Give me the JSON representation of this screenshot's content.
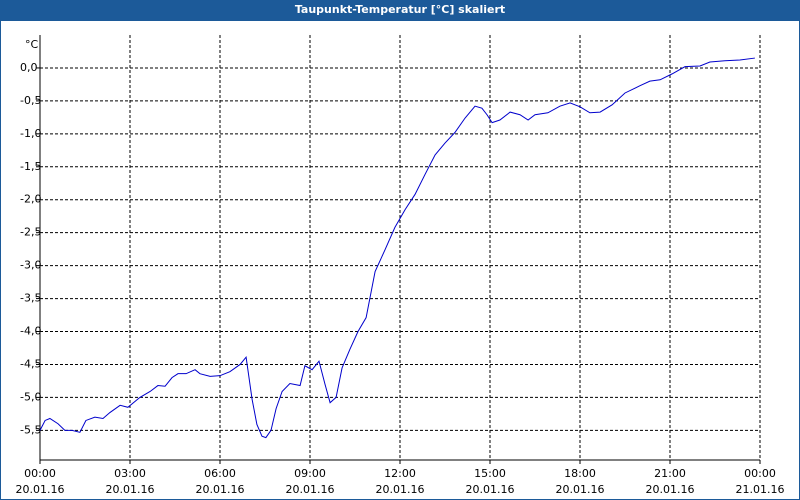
{
  "chart_data": {
    "type": "line",
    "title": "Taupunkt-Temperatur [°C] skaliert",
    "y_label": "°C",
    "x": [
      0,
      0.17,
      0.33,
      0.6,
      0.83,
      1.07,
      1.33,
      1.53,
      1.83,
      2.1,
      2.33,
      2.67,
      2.93,
      3.33,
      3.67,
      3.93,
      4.17,
      4.4,
      4.6,
      4.87,
      5.17,
      5.33,
      5.67,
      6.0,
      6.33,
      6.67,
      6.87,
      7.07,
      7.23,
      7.4,
      7.53,
      7.7,
      7.87,
      8.07,
      8.33,
      8.67,
      8.83,
      9.07,
      9.3,
      9.5,
      9.67,
      9.87,
      10.07,
      10.33,
      10.6,
      10.87,
      11.17,
      11.5,
      11.83,
      12.17,
      12.5,
      12.83,
      13.17,
      13.5,
      13.83,
      14.17,
      14.5,
      14.73,
      14.9,
      15.07,
      15.33,
      15.67,
      16.0,
      16.27,
      16.5,
      16.93,
      17.33,
      17.67,
      18.0,
      18.33,
      18.67,
      19.07,
      19.5,
      20.0,
      20.33,
      20.67,
      21.07,
      21.5,
      22.0,
      22.33,
      22.83,
      23.33,
      23.83
    ],
    "series": [
      {
        "name": "Taupunkt-Temperatur",
        "color": "#0000cc",
        "values": [
          -5.5,
          -5.35,
          -5.32,
          -5.4,
          -5.5,
          -5.5,
          -5.53,
          -5.35,
          -5.3,
          -5.32,
          -5.23,
          -5.12,
          -5.15,
          -5.0,
          -4.91,
          -4.82,
          -4.83,
          -4.7,
          -4.64,
          -4.64,
          -4.58,
          -4.64,
          -4.68,
          -4.67,
          -4.61,
          -4.5,
          -4.39,
          -5.03,
          -5.41,
          -5.59,
          -5.61,
          -5.5,
          -5.17,
          -4.91,
          -4.79,
          -4.82,
          -4.52,
          -4.58,
          -4.45,
          -4.8,
          -5.08,
          -5.0,
          -4.55,
          -4.27,
          -4.0,
          -3.79,
          -3.09,
          -2.76,
          -2.42,
          -2.15,
          -1.92,
          -1.62,
          -1.32,
          -1.14,
          -0.98,
          -0.76,
          -0.58,
          -0.61,
          -0.71,
          -0.83,
          -0.79,
          -0.67,
          -0.71,
          -0.79,
          -0.71,
          -0.68,
          -0.58,
          -0.53,
          -0.59,
          -0.68,
          -0.67,
          -0.56,
          -0.38,
          -0.27,
          -0.2,
          -0.18,
          -0.09,
          0.02,
          0.03,
          0.09,
          0.11,
          0.12,
          0.15
        ]
      }
    ],
    "xlim": [
      0,
      24
    ],
    "xticks": [
      {
        "value": 0,
        "label": "00:00\n20.01.16"
      },
      {
        "value": 3,
        "label": "03:00\n20.01.16"
      },
      {
        "value": 6,
        "label": "06:00\n20.01.16"
      },
      {
        "value": 9,
        "label": "09:00\n20.01.16"
      },
      {
        "value": 12,
        "label": "12:00\n20.01.16"
      },
      {
        "value": 15,
        "label": "15:00\n20.01.16"
      },
      {
        "value": 18,
        "label": "18:00\n20.01.16"
      },
      {
        "value": 21,
        "label": "21:00\n20.01.16"
      },
      {
        "value": 24,
        "label": "00:00\n21.01.16"
      }
    ],
    "ylim": [
      -5.95,
      0.5
    ],
    "yticks": [
      {
        "value": 0,
        "label": "0,0"
      },
      {
        "value": -0.5,
        "label": "-0,5"
      },
      {
        "value": -1,
        "label": "-1,0"
      },
      {
        "value": -1.5,
        "label": "-1,5"
      },
      {
        "value": -2,
        "label": "-2,0"
      },
      {
        "value": -2.5,
        "label": "-2,5"
      },
      {
        "value": -3,
        "label": "-3,0"
      },
      {
        "value": -3.5,
        "label": "-3,5"
      },
      {
        "value": -4,
        "label": "-4,0"
      },
      {
        "value": -4.5,
        "label": "-4,5"
      },
      {
        "value": -5,
        "label": "-5,0"
      },
      {
        "value": -5.5,
        "label": "-5,5"
      }
    ],
    "grid": true
  }
}
